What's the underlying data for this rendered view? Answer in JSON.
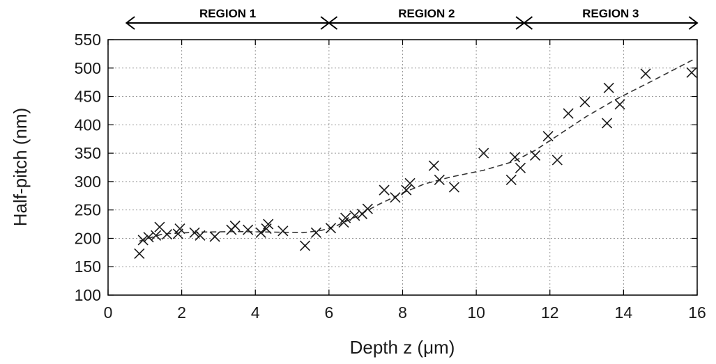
{
  "chart_data": {
    "type": "scatter",
    "title": "",
    "xlabel": "Depth z (μm)",
    "ylabel": "Half-pitch (nm)",
    "xlim": [
      0,
      16
    ],
    "ylim": [
      100,
      550
    ],
    "xticks": [
      "0",
      "2",
      "4",
      "6",
      "8",
      "10",
      "12",
      "14",
      "16"
    ],
    "yticks": [
      "100",
      "150",
      "200",
      "250",
      "300",
      "350",
      "400",
      "450",
      "500",
      "550"
    ],
    "grid": true,
    "regions": [
      {
        "label": "REGION 1",
        "x_start": 0.5,
        "x_end": 6.0
      },
      {
        "label": "REGION 2",
        "x_start": 6.0,
        "x_end": 11.3
      },
      {
        "label": "REGION 3",
        "x_start": 11.3,
        "x_end": 16.0
      }
    ],
    "series": [
      {
        "marker": "x",
        "color": "#1a1a1a",
        "points": [
          [
            0.85,
            173
          ],
          [
            0.95,
            197
          ],
          [
            1.1,
            202
          ],
          [
            1.3,
            205
          ],
          [
            1.4,
            220
          ],
          [
            1.6,
            207
          ],
          [
            1.9,
            208
          ],
          [
            1.95,
            217
          ],
          [
            2.35,
            210
          ],
          [
            2.5,
            205
          ],
          [
            2.9,
            203
          ],
          [
            3.35,
            215
          ],
          [
            3.45,
            222
          ],
          [
            3.8,
            215
          ],
          [
            4.15,
            210
          ],
          [
            4.3,
            217
          ],
          [
            4.35,
            225
          ],
          [
            4.75,
            213
          ],
          [
            5.35,
            187
          ],
          [
            5.65,
            210
          ],
          [
            6.05,
            218
          ],
          [
            6.4,
            228
          ],
          [
            6.45,
            236
          ],
          [
            6.7,
            240
          ],
          [
            6.9,
            243
          ],
          [
            7.05,
            252
          ],
          [
            7.5,
            285
          ],
          [
            7.8,
            272
          ],
          [
            8.1,
            285
          ],
          [
            8.2,
            297
          ],
          [
            8.85,
            328
          ],
          [
            9.0,
            303
          ],
          [
            9.4,
            290
          ],
          [
            10.2,
            350
          ],
          [
            10.95,
            303
          ],
          [
            11.05,
            343
          ],
          [
            11.2,
            324
          ],
          [
            11.6,
            346
          ],
          [
            11.95,
            380
          ],
          [
            12.2,
            338
          ],
          [
            12.5,
            420
          ],
          [
            12.95,
            440
          ],
          [
            13.55,
            403
          ],
          [
            13.6,
            465
          ],
          [
            13.9,
            436
          ],
          [
            14.6,
            490
          ],
          [
            15.85,
            492
          ]
        ]
      },
      {
        "style": "dashed",
        "color": "#333333",
        "points": [
          [
            0.85,
            195
          ],
          [
            1.5,
            208
          ],
          [
            2.5,
            211
          ],
          [
            3.5,
            212
          ],
          [
            4.5,
            211
          ],
          [
            5.3,
            210
          ],
          [
            5.8,
            214
          ],
          [
            6.2,
            222
          ],
          [
            6.7,
            237
          ],
          [
            7.3,
            258
          ],
          [
            8.0,
            280
          ],
          [
            8.6,
            296
          ],
          [
            9.3,
            308
          ],
          [
            10.2,
            320
          ],
          [
            11.0,
            335
          ],
          [
            11.6,
            355
          ],
          [
            12.3,
            385
          ],
          [
            13.0,
            415
          ],
          [
            13.8,
            445
          ],
          [
            14.8,
            478
          ],
          [
            15.9,
            515
          ]
        ]
      }
    ]
  }
}
